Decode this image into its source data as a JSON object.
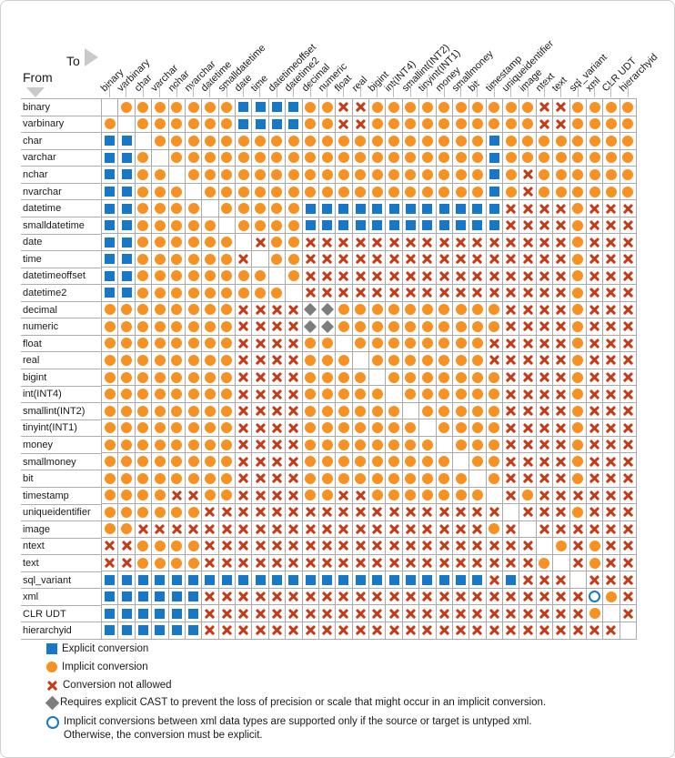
{
  "header": {
    "to_label": "To",
    "from_label": "From"
  },
  "types": [
    "binary",
    "varbinary",
    "char",
    "varchar",
    "nchar",
    "nvarchar",
    "datetime",
    "smalldatetime",
    "date",
    "time",
    "datetimeoffset",
    "datetime2",
    "decimal",
    "numeric",
    "float",
    "real",
    "bigint",
    "int(INT4)",
    "smallint(INT2)",
    "tinyint(INT1)",
    "money",
    "smallmoney",
    "bit",
    "timestamp",
    "uniqueidentifier",
    "image",
    "ntext",
    "text",
    "sql_variant",
    "xml",
    "CLR UDT",
    "hierarchyid"
  ],
  "symbol_key": {
    "B": "explicit-conversion",
    "O": "implicit-conversion",
    "X": "conversion-not-allowed",
    "D": "requires-explicit-cast",
    "U": "xml-untyped-note",
    ".": "same-type-blank"
  },
  "matrix": [
    ".OOOOOOOBBBBOOXXOOOOOOOOOOXXOOOO",
    "O.OOOOOOBBBBOOXXOOOOOOOOOOXXOOOO",
    "BB.OOOOOOOOOOOOOOOOOOOOBOOOOOOOO",
    "BBO.OOOOOOOOOOOOOOOOOOOBOOOOOOOO",
    "BBOO.OOOOOOOOOOOOOOOOOOBOXOOOOOO",
    "BBOOO.OOOOOOOOOOOOOOOOOBOXOOOOOO",
    "BBOOOO.OOOOOBBBBBBBBBBBBXXXXOXXX",
    "BBOOOOO.OOOOBBBBBBBBBBBBXXXXOXXX",
    "BBOOOOOO.XOOXXXXXXXXXXXXXXXXOXXX",
    "BBOOOOOOX.OOXXXXXXXXXXXXXXXXOXXX",
    "BBOOOOOOOO.OXXXXXXXXXXXXXXXXOXXX",
    "BBOOOOOOOOO.XXXXXXXXXXXXXXXXOXXX",
    "OOOOOOOOXXXXDDOOOOOOOOOOXXXXOXXX",
    "OOOOOOOOXXXXDDOOOOOOOOOOXXXXOXXX",
    "OOOOOOOOXXXXOO.OOOOOOOOXXXXXOXXX",
    "OOOOOOOOXXXXOOO.OOOOOOOXXXXXOXXX",
    "OOOOOOOOXXXXOOOO.OOOOOOOXXXXOXXX",
    "OOOOOOOOXXXXOOOOO.OOOOOOXXXXOXXX",
    "OOOOOOOOXXXXOOOOOO.OOOOOXXXXOXXX",
    "OOOOOOOOXXXXOOOOOOO.OOOOXXXXOXXX",
    "OOOOOOOOXXXXOOOOOOOO.OOOXXXXOXXX",
    "OOOOOOOOXXXXOOOOOOOOO.OOXXXXOXXX",
    "OOOOOOOOXXXXOOOOOOOOOO.OXXXXOXXX",
    "OOOOXXOOXXXXOOXXOOOOOOO.XOXXXXXX",
    "OOOOOOXXXXXXXXXXXXXXXXXX.XXXOXXX",
    "OOXXXXXXXXXXXXXXXXXXXXXOX.XXXXXX",
    "XXOOOOXXXXXXXXXXXXXXXXXXXX.OXOXX",
    "XXOOOOXXXXXXXXXXXXXXXXXXXXO.XOXX",
    "BBBBBBBBBBBBBBBBBBBBBBBXBXXX.XXX",
    "BBBBBBXXXXXXXXXXXXXXXXXXXXXXXUOX",
    "BBBBBBXXXXXXXXXXXXXXXXXXXXXXXO.X",
    "BBBBBBXXXXXXXXXXXXXXXXXXXXXXXXX."
  ],
  "legend": [
    {
      "symbol": "B",
      "label": "Explicit conversion"
    },
    {
      "symbol": "O",
      "label": "Implicit conversion"
    },
    {
      "symbol": "X",
      "label": "Conversion not allowed"
    },
    {
      "symbol": "D",
      "label": "Requires explicit CAST to prevent the loss of precision or scale that might occur in an implicit conversion."
    },
    {
      "symbol": "U",
      "label": "Implicit conversions between xml data types are supported only if the source or target is untyped xml.",
      "label2": "Otherwise, the conversion must be explicit."
    }
  ],
  "colors": {
    "explicit_blue": "#1878C8",
    "implicit_orange": "#F79222",
    "not_allowed_red": "#C63A16",
    "cast_gray": "#7D7D7D",
    "grid_line": "#ABABAB"
  }
}
